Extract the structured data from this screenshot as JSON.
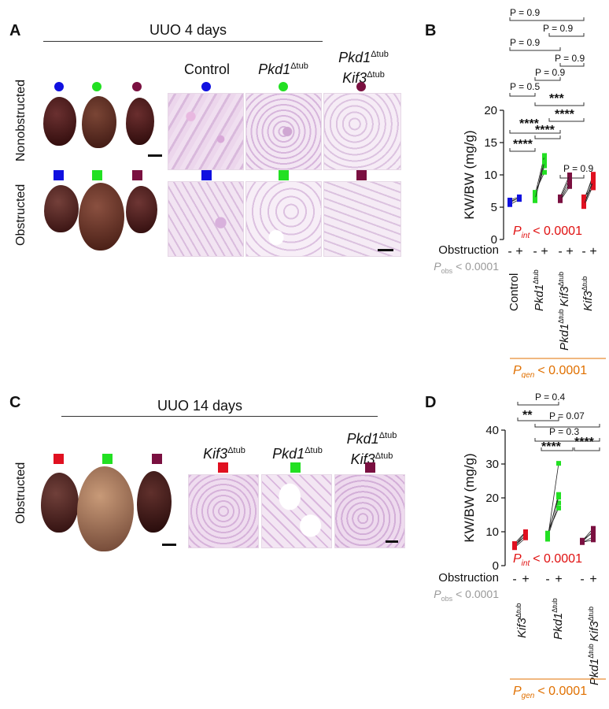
{
  "panel_A": {
    "letter": "A",
    "title": "UUO 4 days",
    "row_labels": [
      "Nonobstructed",
      "Obstructed"
    ],
    "columns": [
      {
        "name": "Control",
        "sup": ""
      },
      {
        "name": "Pkd1",
        "sup": "Δtub"
      },
      {
        "name": "Pkd1",
        "sup": "Δtub",
        "name2": "Kif3",
        "sup2": "Δtub"
      }
    ]
  },
  "panel_B": {
    "letter": "B",
    "comparisons": [
      "P = 0.9",
      "P = 0.9",
      "P = 0.9",
      "P = 0.9",
      "P = 0.9",
      "P = 0.5",
      "***",
      "****",
      "****",
      "****",
      "****",
      "P = 0.9"
    ],
    "ylabel": "KW/BW (mg/g)",
    "yticks": [
      "0",
      "5",
      "10",
      "15",
      "20"
    ],
    "p_int_label": "P",
    "p_int_sub": "int",
    "p_int_value": "< 0.0001",
    "obstruction_label": "Obstruction",
    "obstruction_marks": [
      "-",
      "+",
      "-",
      "+",
      "-",
      "+",
      "-",
      "+"
    ],
    "p_obs_label": "P",
    "p_obs_sub": "obs",
    "p_obs_value": "< 0.0001",
    "groups": [
      "Control",
      "Pkd1",
      "Pkd1",
      "Kif3",
      "Kif3"
    ],
    "group_sup": "Δtub",
    "p_gen_label": "P",
    "p_gen_sub": "gen",
    "p_gen_value": "< 0.0001"
  },
  "panel_C": {
    "letter": "C",
    "title": "UUO 14 days",
    "row_labels": [
      "Obstructed"
    ],
    "columns": [
      {
        "name": "Kif3",
        "sup": "Δtub"
      },
      {
        "name": "Pkd1",
        "sup": "Δtub"
      },
      {
        "name": "Pkd1",
        "sup": "Δtub",
        "name2": "Kif3",
        "sup2": "Δtub"
      }
    ]
  },
  "panel_D": {
    "letter": "D",
    "comparisons": [
      "P = 0.4",
      "**",
      "P = 0.07",
      "P = 0.3",
      "****",
      "****"
    ],
    "ylabel": "KW/BW (mg/g)",
    "yticks": [
      "0",
      "10",
      "20",
      "30",
      "40"
    ],
    "p_int_label": "P",
    "p_int_sub": "int",
    "p_int_value": "< 0.0001",
    "obstruction_label": "Obstruction",
    "obstruction_marks": [
      "-",
      "+",
      "-",
      "+",
      "-",
      "+"
    ],
    "p_obs_label": "P",
    "p_obs_sub": "obs",
    "p_obs_value": "< 0.0001",
    "groups": [
      "Kif3",
      "Pkd1",
      "Pkd1",
      "Kif3"
    ],
    "group_sup": "Δtub",
    "p_gen_label": "P",
    "p_gen_sub": "gen",
    "p_gen_value": "< 0.0001"
  },
  "colors": {
    "control": "#1010e0",
    "pkd1": "#22e022",
    "double": "#7a1040",
    "kif3": "#e01020",
    "p_int": "#e01010",
    "p_gen": "#e07000",
    "p_obs": "#999999"
  },
  "chart_data": [
    {
      "type": "scatter",
      "panel": "B",
      "ylabel": "KW/BW (mg/g)",
      "ylim": [
        0,
        20
      ],
      "yticks": [
        0,
        5,
        10,
        15,
        20
      ],
      "series": [
        {
          "name": "Control",
          "color": "#1010e0",
          "pairs": [
            [
              5.4,
              6.2
            ],
            [
              5.7,
              6.5
            ],
            [
              5.9,
              6.4
            ],
            [
              6.1,
              6.6
            ]
          ]
        },
        {
          "name": "Pkd1Δtub",
          "color": "#22e022",
          "pairs": [
            [
              6.0,
              12.6
            ],
            [
              6.5,
              11.4
            ],
            [
              6.9,
              13.0
            ],
            [
              7.3,
              10.4
            ],
            [
              6.2,
              12.0
            ]
          ]
        },
        {
          "name": "Pkd1Δtub Kif3Δtub",
          "color": "#7a1040",
          "pairs": [
            [
              6.0,
              8.2
            ],
            [
              6.3,
              9.5
            ],
            [
              6.6,
              10.0
            ],
            [
              6.1,
              8.8
            ]
          ]
        },
        {
          "name": "Kif3Δtub",
          "color": "#e01020",
          "pairs": [
            [
              5.1,
              8.4
            ],
            [
              5.5,
              9.2
            ],
            [
              5.8,
              10.1
            ],
            [
              6.2,
              9.6
            ],
            [
              6.6,
              8.0
            ],
            [
              5.3,
              9.0
            ]
          ]
        }
      ]
    },
    {
      "type": "scatter",
      "panel": "D",
      "ylabel": "KW/BW (mg/g)",
      "ylim": [
        0,
        40
      ],
      "yticks": [
        0,
        10,
        20,
        30,
        40
      ],
      "series": [
        {
          "name": "Kif3Δtub",
          "color": "#e01020",
          "pairs": [
            [
              5.3,
              8.2
            ],
            [
              5.6,
              9.0
            ],
            [
              5.9,
              9.8
            ],
            [
              6.2,
              8.8
            ],
            [
              6.5,
              10.0
            ]
          ]
        },
        {
          "name": "Pkd1Δtub",
          "color": "#22e022",
          "pairs": [
            [
              7.8,
              30.2
            ],
            [
              8.3,
              18.5
            ],
            [
              8.8,
              21.0
            ],
            [
              9.2,
              20.2
            ],
            [
              9.6,
              17.0
            ]
          ]
        },
        {
          "name": "Pkd1Δtub Kif3Δtub",
          "color": "#7a1040",
          "pairs": [
            [
              6.8,
              8.5
            ],
            [
              7.0,
              10.2
            ],
            [
              7.3,
              11.0
            ],
            [
              7.5,
              9.8
            ],
            [
              6.9,
              7.6
            ]
          ]
        }
      ]
    }
  ]
}
